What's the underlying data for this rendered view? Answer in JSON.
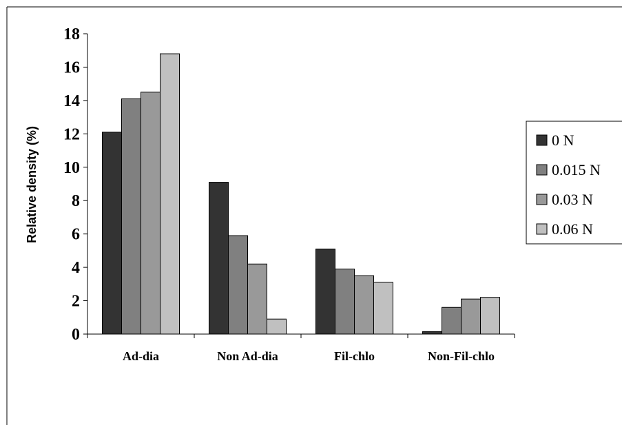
{
  "chart_data": {
    "type": "bar",
    "title": "",
    "xlabel": "",
    "ylabel": "Relative density (%)",
    "ylim": [
      0,
      18
    ],
    "yticks": [
      0,
      2,
      4,
      6,
      8,
      10,
      12,
      14,
      16,
      18
    ],
    "categories": [
      "Ad-dia",
      "Non Ad-dia",
      "Fil-chlo",
      "Non-Fil-chlo"
    ],
    "series": [
      {
        "name": "0 N",
        "color": "#333333",
        "values": [
          12.1,
          9.1,
          5.1,
          0.15
        ]
      },
      {
        "name": "0.015 N",
        "color": "#808080",
        "values": [
          14.1,
          5.9,
          3.9,
          1.6
        ]
      },
      {
        "name": "0.03 N",
        "color": "#999999",
        "values": [
          14.5,
          4.2,
          3.5,
          2.1
        ]
      },
      {
        "name": "0.06 N",
        "color": "#c0c0c0",
        "values": [
          16.8,
          0.9,
          3.1,
          2.2
        ]
      }
    ],
    "legend_position": "right",
    "grid": false
  }
}
